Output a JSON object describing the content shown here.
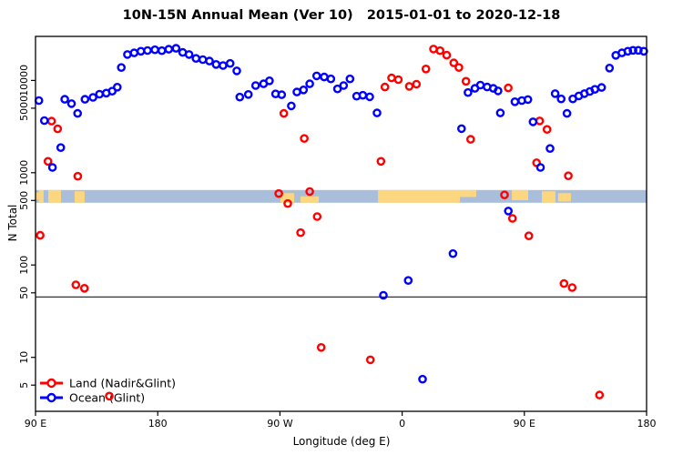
{
  "title": "10N-15N Annual Mean (Ver 10)   2015-01-01 to 2020-12-18",
  "chart_data": {
    "type": "scatter",
    "xlabel": "Longitude (deg E)",
    "ylabel": "N Total",
    "y_log": true,
    "xlim": [
      90,
      540
    ],
    "ylim": [
      2.6,
      30000
    ],
    "x_ticks": [
      {
        "lon": 90,
        "label": "90 E"
      },
      {
        "lon": 180,
        "label": "180"
      },
      {
        "lon": 270,
        "label": "90 W"
      },
      {
        "lon": 360,
        "label": "0"
      },
      {
        "lon": 450,
        "label": "90 E"
      },
      {
        "lon": 540,
        "label": "180"
      }
    ],
    "y_ticks": [
      5,
      10,
      50,
      100,
      500,
      1000,
      5000,
      10000
    ],
    "reference_line_y": 45,
    "reference_line_color": "#333333",
    "map_band": {
      "value_range": [
        473,
        650
      ],
      "ocean_color": "#a8bedb",
      "land_color": "#fcd77f",
      "land_patches": [
        [
          90.0,
          92.3,
          0.2,
          0.75
        ],
        [
          92.3,
          96.0,
          0.0,
          1.0
        ],
        [
          99.4,
          108.8,
          0.0,
          1.0
        ],
        [
          118.8,
          126.2,
          0.1,
          1.0
        ],
        [
          270.4,
          280.5,
          0.25,
          1.0
        ],
        [
          285.1,
          298.6,
          0.5,
          1.0
        ],
        [
          342.2,
          402.5,
          0.0,
          1.0
        ],
        [
          402.5,
          414.6,
          0.0,
          0.55
        ],
        [
          440.8,
          452.8,
          0.0,
          0.8
        ],
        [
          462.9,
          472.9,
          0.1,
          1.0
        ],
        [
          474.9,
          484.3,
          0.25,
          0.9
        ]
      ]
    },
    "legend_position": "bottom-left",
    "series": [
      {
        "name": "Land (Nadir&Glint)",
        "color": "#ff0000",
        "points": [
          [
            93.4,
            210
          ],
          [
            99.2,
            1330
          ],
          [
            101.8,
            3620
          ],
          [
            106.3,
            2990
          ],
          [
            119.7,
            61
          ],
          [
            121.1,
            915
          ],
          [
            126,
            56
          ],
          [
            144.3,
            3.8
          ],
          [
            269.1,
            595
          ],
          [
            272.9,
            4400
          ],
          [
            275.8,
            463
          ],
          [
            285.2,
            224
          ],
          [
            287.9,
            2350
          ],
          [
            291.9,
            625
          ],
          [
            297.4,
            335
          ],
          [
            300.4,
            12.8
          ],
          [
            336.6,
            9.4
          ],
          [
            344.4,
            1330
          ],
          [
            347.3,
            8500
          ],
          [
            352.2,
            10650
          ],
          [
            357.2,
            10200
          ],
          [
            365.2,
            8630
          ],
          [
            370.5,
            9100
          ],
          [
            377.5,
            13300
          ],
          [
            383.1,
            21900
          ],
          [
            387.9,
            21000
          ],
          [
            392.8,
            18800
          ],
          [
            398,
            15500
          ],
          [
            401.8,
            13800
          ],
          [
            407,
            9800
          ],
          [
            410.4,
            2300
          ],
          [
            435.4,
            575
          ],
          [
            438.1,
            8300
          ],
          [
            441.2,
            320
          ],
          [
            453.3,
            207
          ],
          [
            459,
            1280
          ],
          [
            461.3,
            3640
          ],
          [
            466.7,
            2950
          ],
          [
            479.2,
            63
          ],
          [
            482.4,
            925
          ],
          [
            485.2,
            57
          ],
          [
            505.3,
            3.9
          ]
        ]
      },
      {
        "name": "Ocean (Glint)",
        "color": "#0000ff",
        "points": [
          [
            92.5,
            6050
          ],
          [
            96.5,
            3670
          ],
          [
            102.5,
            1140
          ],
          [
            108.6,
            1870
          ],
          [
            111.5,
            6250
          ],
          [
            116.5,
            5600
          ],
          [
            121,
            4400
          ],
          [
            126.4,
            6250
          ],
          [
            132.3,
            6550
          ],
          [
            137.1,
            7100
          ],
          [
            142.1,
            7300
          ],
          [
            146.5,
            7650
          ],
          [
            150.2,
            8450
          ],
          [
            153.2,
            13800
          ],
          [
            157.7,
            19100
          ],
          [
            162.6,
            19900
          ],
          [
            167.6,
            20700
          ],
          [
            172.5,
            21100
          ],
          [
            177.9,
            21500
          ],
          [
            183,
            21000
          ],
          [
            188.1,
            21800
          ],
          [
            193.5,
            22300
          ],
          [
            198.4,
            20100
          ],
          [
            203.1,
            19100
          ],
          [
            208.2,
            17300
          ],
          [
            213.2,
            16800
          ],
          [
            218.1,
            16200
          ],
          [
            223,
            14900
          ],
          [
            228.1,
            14500
          ],
          [
            233.3,
            15300
          ],
          [
            238.2,
            12700
          ],
          [
            240.4,
            6600
          ],
          [
            246.7,
            7050
          ],
          [
            252.1,
            8800
          ],
          [
            257.9,
            9200
          ],
          [
            262.3,
            9900
          ],
          [
            266.8,
            7150
          ],
          [
            271.3,
            7000
          ],
          [
            278.4,
            5300
          ],
          [
            282.5,
            7500
          ],
          [
            287.4,
            7900
          ],
          [
            291.9,
            9200
          ],
          [
            297,
            11200
          ],
          [
            302.6,
            10900
          ],
          [
            307.5,
            10400
          ],
          [
            312.4,
            8100
          ],
          [
            316.9,
            8800
          ],
          [
            321.6,
            10400
          ],
          [
            326.5,
            6750
          ],
          [
            331,
            6900
          ],
          [
            336.1,
            6650
          ],
          [
            341.5,
            4450
          ],
          [
            346.2,
            47
          ],
          [
            364.5,
            68
          ],
          [
            375,
            5.8
          ],
          [
            397.4,
            133
          ],
          [
            403.7,
            3000
          ],
          [
            408.5,
            7400
          ],
          [
            413.6,
            8200
          ],
          [
            417.6,
            8900
          ],
          [
            422.6,
            8500
          ],
          [
            427.1,
            8200
          ],
          [
            430.6,
            7700
          ],
          [
            432.3,
            4450
          ],
          [
            438.2,
            385
          ],
          [
            443,
            5880
          ],
          [
            448.1,
            6060
          ],
          [
            452.6,
            6200
          ],
          [
            456.4,
            3560
          ],
          [
            461.9,
            1140
          ],
          [
            468.9,
            1830
          ],
          [
            472.7,
            7200
          ],
          [
            477.1,
            6300
          ],
          [
            481.4,
            4400
          ],
          [
            485.7,
            6300
          ],
          [
            490.1,
            6800
          ],
          [
            494.2,
            7200
          ],
          [
            498.2,
            7600
          ],
          [
            501.9,
            8000
          ],
          [
            506.9,
            8400
          ],
          [
            512.7,
            13600
          ],
          [
            517.3,
            18700
          ],
          [
            521.8,
            19900
          ],
          [
            526.2,
            20700
          ],
          [
            530,
            21200
          ],
          [
            533.9,
            21200
          ],
          [
            537.9,
            20700
          ]
        ]
      }
    ]
  }
}
